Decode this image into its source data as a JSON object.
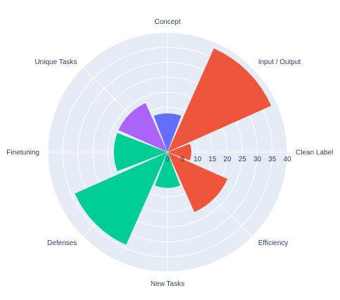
{
  "chart_data": {
    "type": "barpolar",
    "categories": [
      "Concept",
      "Input / Output",
      "Clean Label",
      "Efficiency",
      "New Tasks",
      "Defenses",
      "Finetuning",
      "Unique Tasks"
    ],
    "values": [
      13,
      38,
      8,
      22,
      12,
      34,
      18,
      18
    ],
    "bar_colors": [
      "#636efa",
      "#ef553b",
      "#ef553b",
      "#ef553b",
      "#00cc96",
      "#00cc96",
      "#00cc96",
      "#ab63fa"
    ],
    "radial_ticks": [
      "0",
      "5",
      "10",
      "15",
      "20",
      "25",
      "30",
      "35",
      "40"
    ],
    "radial_range": [
      0,
      40
    ],
    "grid": true,
    "background_color": "#e5ecf6",
    "grid_color": "#ffffff",
    "direction": "clockwise",
    "rotation": "Concept at top"
  }
}
